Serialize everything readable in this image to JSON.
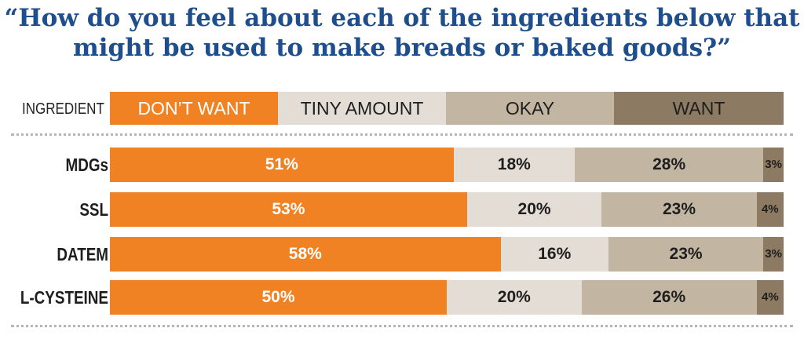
{
  "title_line1": "“How do you feel about each of the ingredients below that",
  "title_line2": "might be used to make breads or baked goods?”",
  "header_label": "INGREDIENT",
  "colors": {
    "dont_want": "#f08223",
    "tiny_amount": "#e3ddd5",
    "okay": "#c2b6a3",
    "want": "#8c7b62",
    "title": "#1f4e8c"
  },
  "chart_data": {
    "type": "bar",
    "orientation": "horizontal",
    "stacked": true,
    "categories": [
      "MDGs",
      "SSL",
      "DATEM",
      "L-CYSTEINE"
    ],
    "series": [
      {
        "name": "DON’T WANT",
        "values": [
          51,
          53,
          58,
          50
        ],
        "labels": [
          "51%",
          "53%",
          "58%",
          "50%"
        ]
      },
      {
        "name": "TINY AMOUNT",
        "values": [
          18,
          20,
          16,
          20
        ],
        "labels": [
          "18%",
          "20%",
          "16%",
          "20%"
        ]
      },
      {
        "name": "OKAY",
        "values": [
          28,
          23,
          23,
          26
        ],
        "labels": [
          "28%",
          "23%",
          "23%",
          "26%"
        ]
      },
      {
        "name": "WANT",
        "values": [
          3,
          4,
          3,
          4
        ],
        "labels": [
          "3%",
          "4%",
          "3%",
          "4%"
        ]
      }
    ],
    "unit": "%",
    "xlim": [
      0,
      100
    ]
  }
}
